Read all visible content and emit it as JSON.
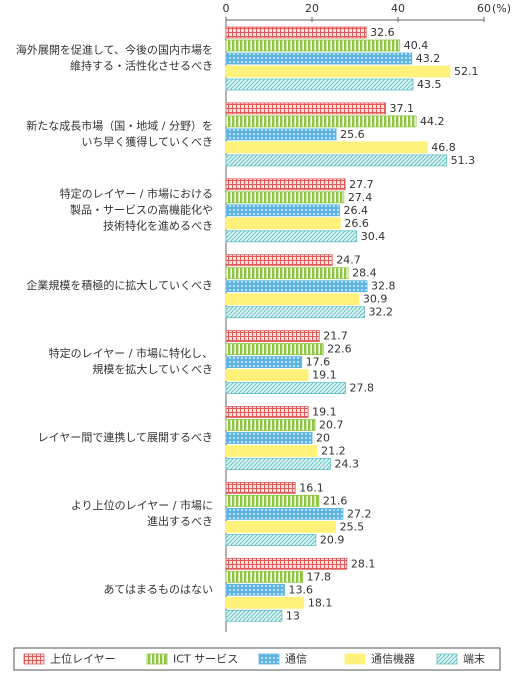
{
  "chart_data": {
    "type": "bar",
    "orientation": "horizontal",
    "categories": [
      [
        "海外展開を促進して、今後の国内市場を",
        "維持する・活性化させるべき"
      ],
      [
        "新たな成長市場（国・地域 / 分野）を",
        "いち早く獲得していくべき"
      ],
      [
        "特定のレイヤー / 市場における",
        "製品・サービスの高機能化や",
        "技術特化を進めるべき"
      ],
      [
        "企業規模を積極的に拡大していくべき"
      ],
      [
        "特定のレイヤー / 市場に特化し、",
        "規模を拡大していくべき"
      ],
      [
        "レイヤー間で連携して展開するべき"
      ],
      [
        "より上位のレイヤー / 市場に",
        "進出するべき"
      ],
      [
        "あてはまるものはない"
      ]
    ],
    "series": [
      {
        "name": "上位レイヤー",
        "color": "#e05a5a",
        "pattern": "check",
        "values": [
          32.6,
          37.1,
          27.7,
          24.7,
          21.7,
          19.1,
          16.1,
          28.1
        ]
      },
      {
        "name": "ICT サービス",
        "color": "#8dc63f",
        "pattern": "vstripe",
        "values": [
          40.4,
          44.2,
          27.4,
          28.4,
          22.6,
          20.7,
          21.6,
          17.8
        ]
      },
      {
        "name": "通信",
        "color": "#5cb3e4",
        "pattern": "dots",
        "values": [
          43.2,
          25.6,
          26.4,
          32.8,
          17.6,
          20,
          27.2,
          13.6
        ]
      },
      {
        "name": "通信機器",
        "color": "#fff17a",
        "pattern": "solid",
        "values": [
          52.1,
          46.8,
          26.6,
          30.9,
          19.1,
          21.2,
          25.5,
          18.1
        ]
      },
      {
        "name": "端末",
        "color": "#62c0c4",
        "pattern": "diag",
        "values": [
          43.5,
          51.3,
          30.4,
          32.2,
          27.8,
          24.3,
          20.9,
          13
        ]
      }
    ],
    "xlim": [
      0,
      60
    ],
    "xticks": [
      0,
      20,
      40,
      60
    ],
    "x_unit": "(%)"
  }
}
